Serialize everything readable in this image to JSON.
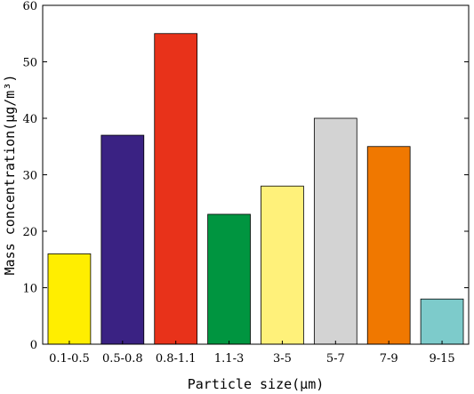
{
  "chart_data": {
    "type": "bar",
    "title": "",
    "xlabel": "Particle size(μm)",
    "ylabel": "Mass concentration(μg/m³)",
    "ylim": [
      0,
      60
    ],
    "yticks": [
      0,
      10,
      20,
      30,
      40,
      50,
      60
    ],
    "grid": false,
    "categories": [
      "0.1-0.5",
      "0.5-0.8",
      "0.8-1.1",
      "1.1-3",
      "3-5",
      "5-7",
      "7-9",
      "9-15"
    ],
    "values": [
      16,
      37,
      55,
      23,
      28,
      40,
      35,
      8
    ],
    "colors": [
      "#ffee00",
      "#3a2283",
      "#e8321a",
      "#009540",
      "#fff17a",
      "#d3d3d3",
      "#f07800",
      "#7dcbcb"
    ]
  }
}
